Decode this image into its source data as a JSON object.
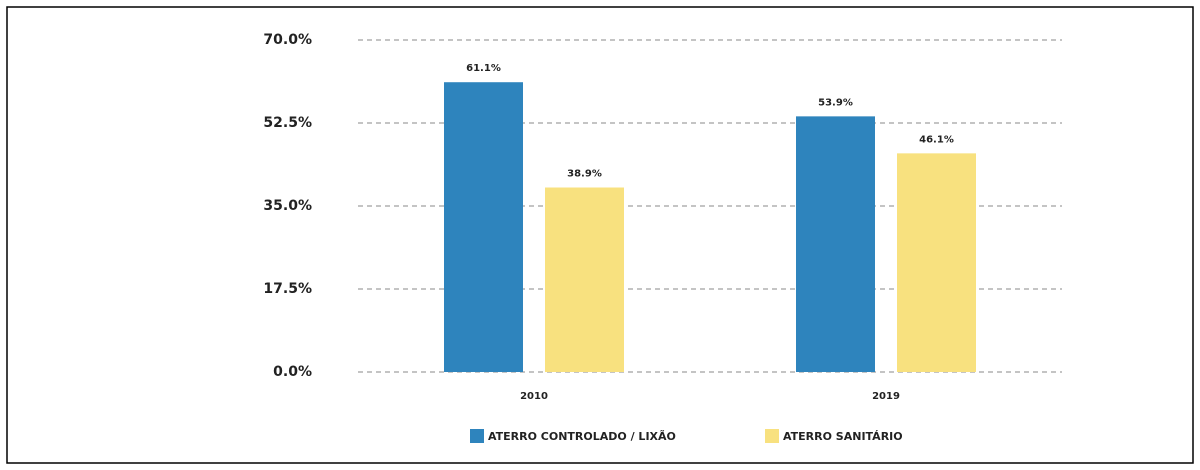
{
  "chart_data": {
    "type": "bar",
    "categories": [
      "2010",
      "2019"
    ],
    "series": [
      {
        "name": "ATERRO CONTROLADO / LIXÃO",
        "color": "#2e84bd",
        "values": [
          61.1,
          53.9
        ],
        "value_labels": [
          "61.1%",
          "53.9%"
        ]
      },
      {
        "name": "ATERRO SANITÁRIO",
        "color": "#f8e17f",
        "values": [
          38.9,
          46.1
        ],
        "value_labels": [
          "38.9%",
          "46.1%"
        ]
      }
    ],
    "ylim": [
      0,
      70
    ],
    "yticks": [
      {
        "value": 0,
        "label": "0.0%"
      },
      {
        "value": 17.5,
        "label": "17.5%"
      },
      {
        "value": 35,
        "label": "35.0%"
      },
      {
        "value": 52.5,
        "label": "52.5%"
      },
      {
        "value": 70,
        "label": "70.0%"
      }
    ],
    "grid": true
  }
}
